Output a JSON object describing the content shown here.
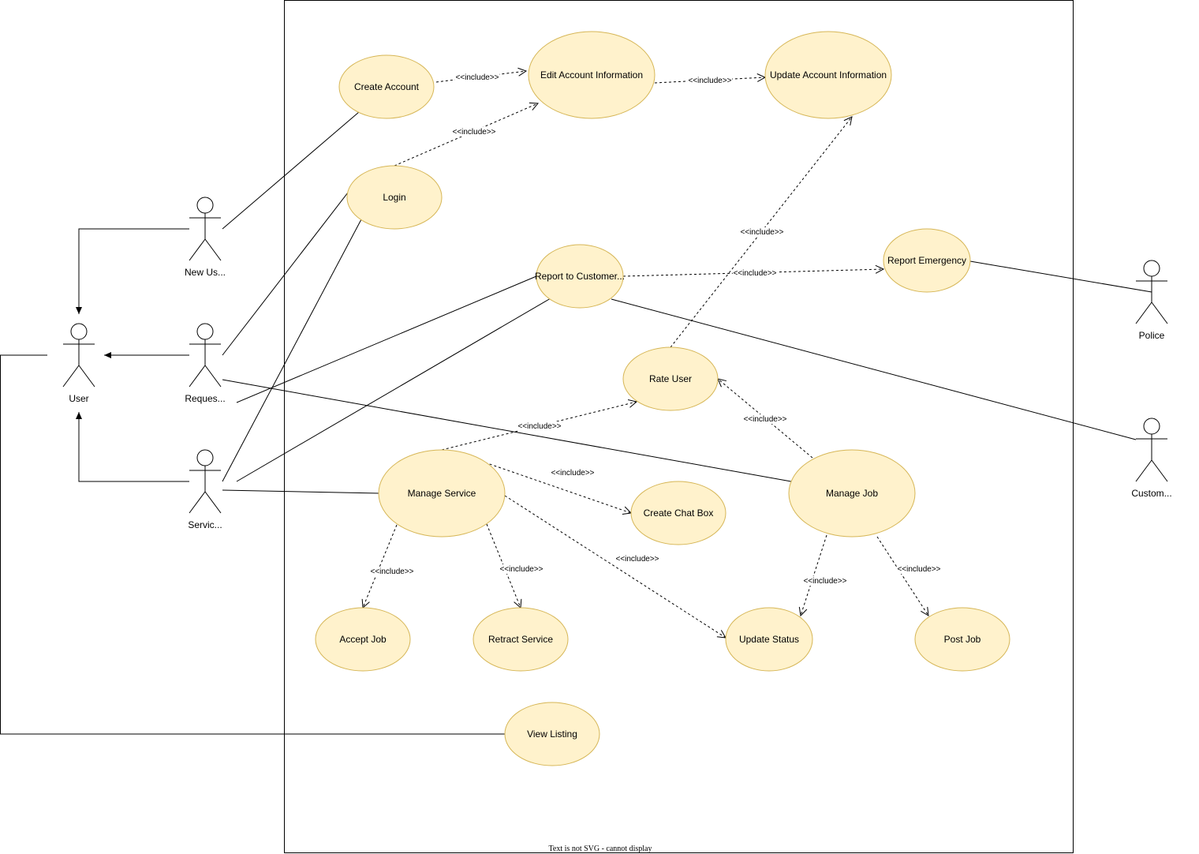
{
  "use_cases": {
    "create_account": "Create Account",
    "edit_account_information": "Edit Account Information",
    "update_account_information": "Update Account Information",
    "login": "Login",
    "report_to_customer": "Report to Customer...",
    "report_emergency": "Report Emergency",
    "rate_user": "Rate User",
    "manage_service": "Manage Service",
    "create_chat_box": "Create Chat Box",
    "manage_job": "Manage Job",
    "accept_job": "Accept Job",
    "retract_service": "Retract Service",
    "update_status": "Update Status",
    "post_job": "Post Job",
    "view_listing": "View Listing"
  },
  "actors": {
    "new_user": "New Us...",
    "requester": "Reques...",
    "service_provider": "Servic...",
    "user": "User",
    "police": "Police",
    "customer": "Custom..."
  },
  "include_label": "<<include>>",
  "footer_note": "Text is not SVG - cannot display",
  "colors": {
    "use_case_fill": "#fff2cc",
    "use_case_stroke": "#d6b656",
    "line": "#000000"
  }
}
